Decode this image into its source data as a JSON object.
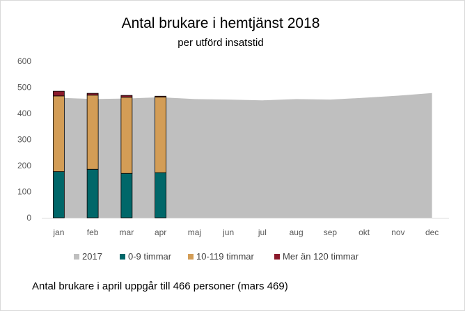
{
  "chart_data": {
    "type": "bar",
    "title": "Antal brukare i hemtjänst 2018",
    "subtitle": "per utförd insatstid",
    "categories": [
      "jan",
      "feb",
      "mar",
      "apr",
      "maj",
      "jun",
      "jul",
      "aug",
      "sep",
      "okt",
      "nov",
      "dec"
    ],
    "ylim": [
      0,
      600
    ],
    "yticks": [
      0,
      100,
      200,
      300,
      400,
      500,
      600
    ],
    "series": [
      {
        "name": "2017",
        "type": "area",
        "color": "#bfbfbf",
        "values": [
          460,
          455,
          457,
          462,
          455,
          453,
          450,
          455,
          453,
          460,
          468,
          478
        ]
      },
      {
        "name": "0-9 timmar",
        "type": "bar",
        "color": "#006769",
        "values": [
          177,
          186,
          170,
          173,
          null,
          null,
          null,
          null,
          null,
          null,
          null,
          null
        ]
      },
      {
        "name": "10-119 timmar",
        "type": "bar",
        "color": "#d39d56",
        "values": [
          290,
          284,
          292,
          290,
          null,
          null,
          null,
          null,
          null,
          null,
          null,
          null
        ]
      },
      {
        "name": "Mer än 120 timmar",
        "type": "bar",
        "color": "#8b1a2b",
        "values": [
          18,
          7,
          7,
          3,
          null,
          null,
          null,
          null,
          null,
          null,
          null,
          null
        ]
      }
    ]
  },
  "footnote": "Antal brukare i april uppgår till 466 personer (mars 469)"
}
